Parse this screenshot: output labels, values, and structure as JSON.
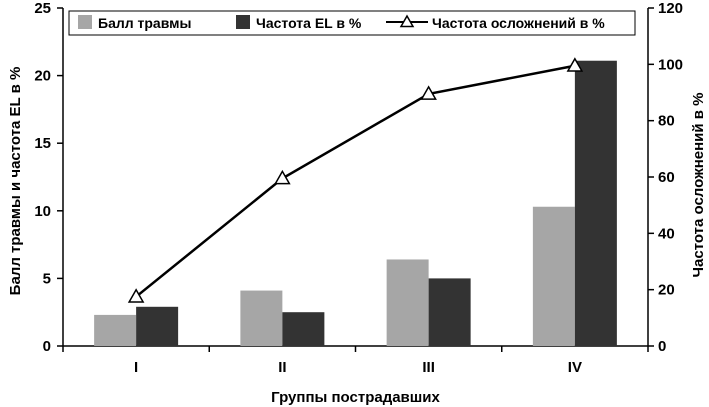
{
  "chart_data": {
    "type": "bar",
    "categories": [
      "I",
      "II",
      "III",
      "IV"
    ],
    "series": [
      {
        "name": "Балл травмы",
        "type": "bar",
        "axis": "left",
        "color": "#a6a6a6",
        "values": [
          2.3,
          4.1,
          6.4,
          10.3
        ]
      },
      {
        "name": "Частота EL в %",
        "type": "bar",
        "axis": "left",
        "color": "#333333",
        "values": [
          2.9,
          2.5,
          5.0,
          21.1
        ]
      },
      {
        "name": "Частота осложнений в %",
        "type": "line",
        "axis": "right",
        "color": "#000000",
        "marker": "triangle",
        "values": [
          17.5,
          59.5,
          89.5,
          99.5
        ]
      }
    ],
    "xlabel": "Группы пострадавших",
    "ylabel": "Балл травмы  и частота EL в %",
    "y2label": "Частота осложнений в %",
    "ylim": [
      0,
      25
    ],
    "yticks": [
      "0",
      "5",
      "10",
      "15",
      "20",
      "25"
    ],
    "y2lim": [
      0,
      120
    ],
    "y2ticks": [
      "0",
      "20",
      "40",
      "60",
      "80",
      "100",
      "120"
    ],
    "grid": false,
    "legend": "top"
  }
}
